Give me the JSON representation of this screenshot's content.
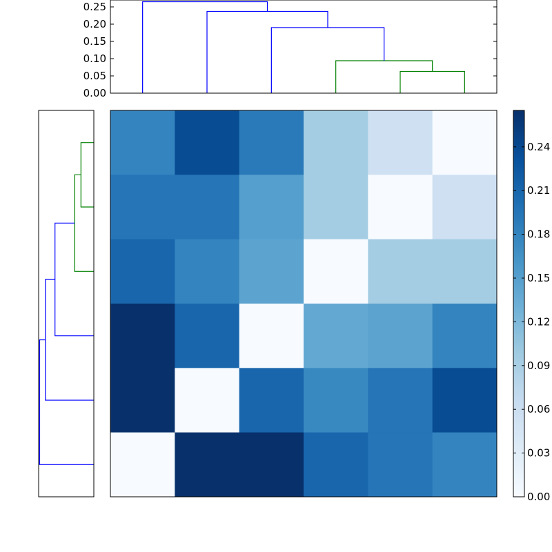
{
  "chart_data": [
    {
      "type": "dendrogram",
      "orientation": "top",
      "ylim": [
        0,
        0.27
      ],
      "yticks": [
        "0.00",
        "0.05",
        "0.10",
        "0.15",
        "0.20",
        "0.25"
      ],
      "ytick_values": [
        0,
        0.05,
        0.1,
        0.15,
        0.2,
        0.25
      ],
      "links": [
        {
          "left": 4.5,
          "right": 5.5,
          "height": 0.063,
          "lb": 0,
          "rb": 0,
          "color": "#008000"
        },
        {
          "left": 3.5,
          "right": 5.0,
          "height": 0.094,
          "lb": 0,
          "rb": 0.063,
          "color": "#008000"
        },
        {
          "left": 2.5,
          "right": 4.25,
          "height": 0.19,
          "lb": 0,
          "rb": 0.094,
          "color": "#0000ff"
        },
        {
          "left": 1.5,
          "right": 3.375,
          "height": 0.237,
          "lb": 0,
          "rb": 0.19,
          "color": "#0000ff"
        },
        {
          "left": 0.5,
          "right": 2.4375,
          "height": 0.265,
          "lb": 0,
          "rb": 0.237,
          "color": "#0000ff"
        }
      ]
    },
    {
      "type": "dendrogram",
      "orientation": "left",
      "links": [
        {
          "top": 0.5,
          "bottom": 1.5,
          "height": 0.063,
          "lb": 0,
          "rb": 0,
          "color": "#008000"
        },
        {
          "top": 1.0,
          "bottom": 2.5,
          "height": 0.094,
          "lb": 0.063,
          "rb": 0,
          "color": "#008000"
        },
        {
          "top": 1.75,
          "bottom": 3.5,
          "height": 0.19,
          "lb": 0.094,
          "rb": 0,
          "color": "#0000ff"
        },
        {
          "top": 2.625,
          "bottom": 4.5,
          "height": 0.237,
          "lb": 0.19,
          "rb": 0,
          "color": "#0000ff"
        },
        {
          "top": 3.5625,
          "bottom": 5.5,
          "height": 0.265,
          "lb": 0.237,
          "rb": 0,
          "color": "#0000ff"
        }
      ]
    },
    {
      "type": "heatmap",
      "colormap": "Blues",
      "vmin": 0,
      "vmax": 0.265,
      "values": [
        [
          0.18,
          0.237,
          0.19,
          0.094,
          0.055,
          0.0
        ],
        [
          0.195,
          0.195,
          0.15,
          0.094,
          0.0,
          0.055
        ],
        [
          0.21,
          0.18,
          0.145,
          0.0,
          0.094,
          0.094
        ],
        [
          0.265,
          0.21,
          0.0,
          0.14,
          0.145,
          0.18
        ],
        [
          0.265,
          0.0,
          0.21,
          0.175,
          0.195,
          0.237
        ],
        [
          0.0,
          0.265,
          0.265,
          0.21,
          0.195,
          0.18
        ]
      ]
    },
    {
      "type": "colorbar",
      "colormap": "Blues",
      "vmin": 0,
      "vmax": 0.265,
      "ticks": [
        "0.00",
        "0.03",
        "0.06",
        "0.09",
        "0.12",
        "0.15",
        "0.18",
        "0.21",
        "0.24"
      ],
      "tick_values": [
        0,
        0.03,
        0.06,
        0.09,
        0.12,
        0.15,
        0.18,
        0.21,
        0.24
      ]
    }
  ]
}
